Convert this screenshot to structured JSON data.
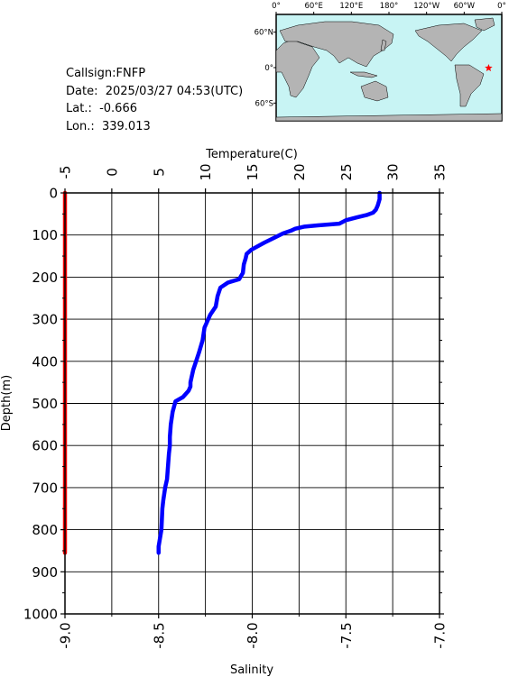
{
  "info": {
    "callsign": "Callsign:FNFP",
    "date": "Date:  2025/03/27 04:53(UTC)",
    "lat": "Lat.:  -0.666",
    "lon": "Lon.:  339.013"
  },
  "map": {
    "lon_labels": [
      "0°",
      "60°E",
      "120°E",
      "180°",
      "120°W",
      "60°W",
      "0°"
    ],
    "lat_labels": [
      "60°N",
      "0°",
      "60°S"
    ],
    "ocean_color": "#c8f4f4",
    "land_color": "#b4b4b4",
    "marker": {
      "lon": 339.013,
      "lat": -0.666,
      "color": "#ff0000",
      "shape": "star"
    }
  },
  "chart_data": {
    "type": "line",
    "top_axis_label": "Temperature(C)",
    "bottom_axis_label": "Salinity",
    "ylabel": "Depth(m)",
    "ylim": [
      0,
      1000
    ],
    "y_ticks": [
      "0",
      "100",
      "200",
      "300",
      "400",
      "500",
      "600",
      "700",
      "800",
      "900",
      "1000"
    ],
    "temperature_axis": {
      "lim": [
        -5,
        35
      ],
      "ticks": [
        "-5",
        "0",
        "5",
        "10",
        "15",
        "20",
        "25",
        "30",
        "35"
      ]
    },
    "salinity_axis": {
      "lim": [
        -9.0,
        -7.0
      ],
      "ticks": [
        "-9.0",
        "-8.5",
        "-8.0",
        "-7.5",
        "-7.0"
      ]
    },
    "grid": true,
    "series": [
      {
        "color": "#0000ff",
        "axis": "temperature",
        "x": [
          28.6,
          28.6,
          28.4,
          28.2,
          27.9,
          27.3,
          26.2,
          25.0,
          24.3,
          22.0,
          20.6,
          19.6,
          19.1,
          18.3,
          17.5,
          16.3,
          14.9,
          14.4,
          14.3,
          14.1,
          14.0,
          13.6,
          12.4,
          11.6,
          11.3,
          11.1,
          10.5,
          10.3,
          9.9,
          9.7,
          9.3,
          9.0,
          8.7,
          8.5,
          8.4,
          8.4,
          8.2,
          7.6,
          6.8,
          6.5,
          6.3,
          6.2,
          6.2,
          6.1,
          6.0,
          5.9,
          5.7,
          5.5,
          5.4,
          5.3,
          5.0,
          5.0
        ],
        "y": [
          0,
          15,
          30,
          40,
          47,
          52,
          58,
          65,
          73,
          77,
          80,
          85,
          90,
          96,
          105,
          118,
          135,
          145,
          155,
          170,
          190,
          205,
          213,
          225,
          245,
          270,
          290,
          300,
          320,
          350,
          380,
          400,
          420,
          440,
          450,
          460,
          470,
          485,
          495,
          520,
          550,
          580,
          600,
          620,
          650,
          680,
          700,
          730,
          750,
          800,
          840,
          855
        ]
      },
      {
        "color": "#ff0000",
        "axis": "salinity",
        "x": [
          -9.0,
          -9.0
        ],
        "y": [
          0,
          855
        ]
      }
    ]
  }
}
